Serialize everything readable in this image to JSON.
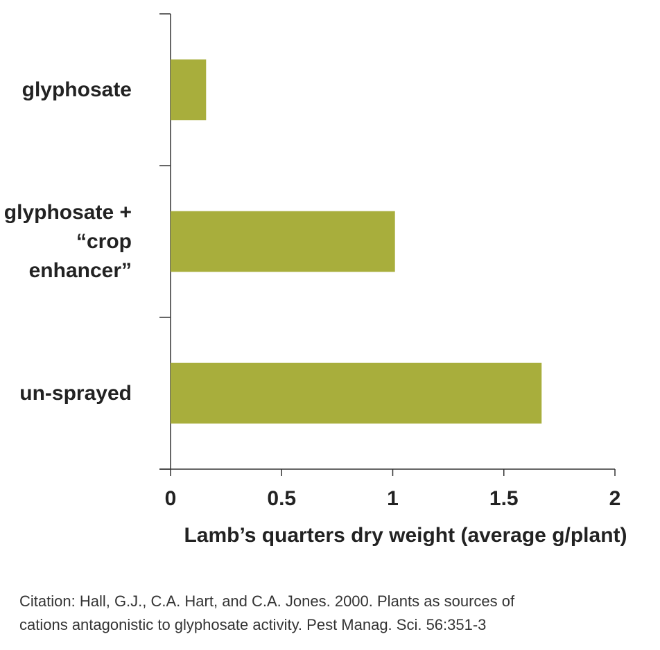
{
  "chart_data": {
    "type": "barh",
    "categories": [
      "glyphosate",
      "glyphosate + “crop enhancer”",
      "un-sprayed"
    ],
    "values": [
      0.16,
      1.01,
      1.67
    ],
    "color": "#a8ae3c",
    "xlim": [
      0,
      2
    ],
    "xticks": [
      0,
      0.5,
      1,
      1.5,
      2
    ],
    "xlabel": "Lamb’s quarters dry weight (average g/plant)",
    "citation": [
      "Citation: Hall, G.J., C.A. Hart, and C.A. Jones. 2000. Plants as sources of",
      "cations antagonistic to glyphosate activity. Pest Manag. Sci. 56:351-3"
    ]
  }
}
